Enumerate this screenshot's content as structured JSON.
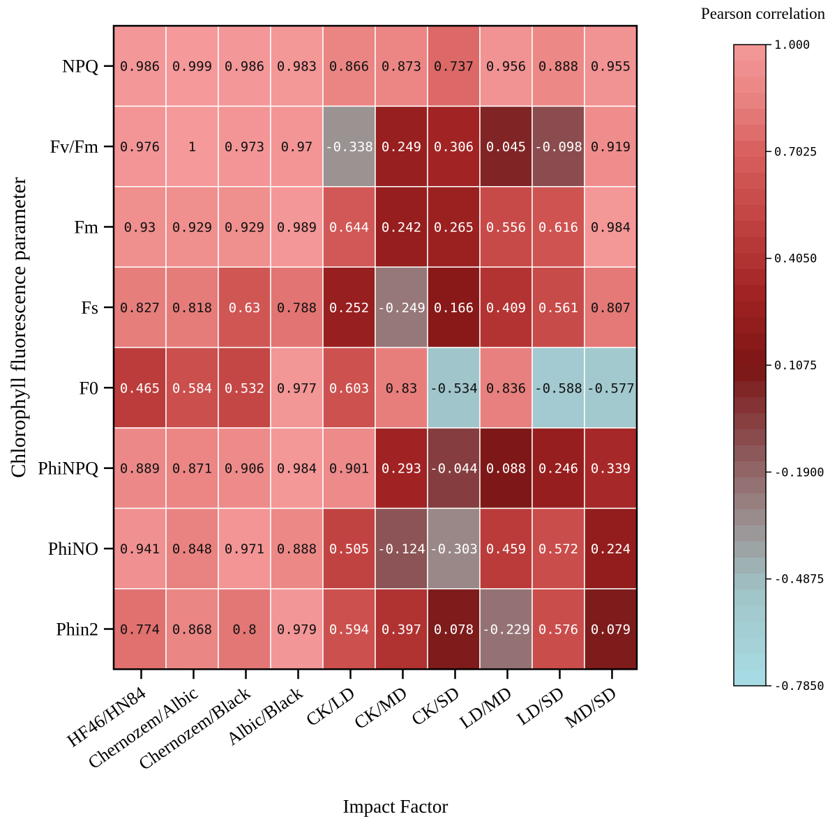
{
  "chart_data": {
    "type": "heatmap",
    "title": "",
    "xlabel": "Impact Factor",
    "ylabel": "Chlorophyll fluorescence parameter",
    "x_categories": [
      "HF46/HN84",
      "Chernozem/Albic",
      "Chernozem/Black",
      "Albic/Black",
      "CK/LD",
      "CK/MD",
      "CK/SD",
      "LD/MD",
      "LD/SD",
      "MD/SD"
    ],
    "y_categories": [
      "NPQ",
      "Fv/Fm",
      "Fm",
      "Fs",
      "F0",
      "PhiNPQ",
      "PhiNO",
      "Phin2"
    ],
    "values": [
      [
        0.986,
        0.999,
        0.986,
        0.983,
        0.866,
        0.873,
        0.737,
        0.956,
        0.888,
        0.955
      ],
      [
        0.976,
        1,
        0.973,
        0.97,
        -0.338,
        0.249,
        0.306,
        0.045,
        -0.098,
        0.919
      ],
      [
        0.93,
        0.929,
        0.929,
        0.989,
        0.644,
        0.242,
        0.265,
        0.556,
        0.616,
        0.984
      ],
      [
        0.827,
        0.818,
        0.63,
        0.788,
        0.252,
        -0.249,
        0.166,
        0.409,
        0.561,
        0.807
      ],
      [
        0.465,
        0.584,
        0.532,
        0.977,
        0.603,
        0.83,
        -0.534,
        0.836,
        -0.588,
        -0.577
      ],
      [
        0.889,
        0.871,
        0.906,
        0.984,
        0.901,
        0.293,
        -0.044,
        0.088,
        0.246,
        0.339
      ],
      [
        0.941,
        0.848,
        0.971,
        0.888,
        0.505,
        -0.124,
        -0.303,
        0.459,
        0.572,
        0.224
      ],
      [
        0.774,
        0.868,
        0.8,
        0.979,
        0.594,
        0.397,
        0.078,
        -0.229,
        0.576,
        0.079
      ]
    ],
    "value_labels": [
      [
        "0.986",
        "0.999",
        "0.986",
        "0.983",
        "0.866",
        "0.873",
        "0.737",
        "0.956",
        "0.888",
        "0.955"
      ],
      [
        "0.976",
        "1",
        "0.973",
        "0.97",
        "-0.338",
        "0.249",
        "0.306",
        "0.045",
        "-0.098",
        "0.919"
      ],
      [
        "0.93",
        "0.929",
        "0.929",
        "0.989",
        "0.644",
        "0.242",
        "0.265",
        "0.556",
        "0.616",
        "0.984"
      ],
      [
        "0.827",
        "0.818",
        "0.63",
        "0.788",
        "0.252",
        "-0.249",
        "0.166",
        "0.409",
        "0.561",
        "0.807"
      ],
      [
        "0.465",
        "0.584",
        "0.532",
        "0.977",
        "0.603",
        "0.83",
        "-0.534",
        "0.836",
        "-0.588",
        "-0.577"
      ],
      [
        "0.889",
        "0.871",
        "0.906",
        "0.984",
        "0.901",
        "0.293",
        "-0.044",
        "0.088",
        "0.246",
        "0.339"
      ],
      [
        "0.941",
        "0.848",
        "0.971",
        "0.888",
        "0.505",
        "-0.124",
        "-0.303",
        "0.459",
        "0.572",
        "0.224"
      ],
      [
        "0.774",
        "0.868",
        "0.8",
        "0.979",
        "0.594",
        "0.397",
        "0.078",
        "-0.229",
        "0.576",
        "0.079"
      ]
    ],
    "colorbar": {
      "title": "Pearson correlation",
      "range": [
        -0.785,
        1.0
      ],
      "ticks": [
        1.0,
        0.7025,
        0.405,
        0.1075,
        -0.19,
        -0.4875,
        -0.785
      ],
      "tick_labels": [
        "1.000",
        "0.7025",
        "0.4050",
        "0.1075",
        "-0.1900",
        "-0.4875",
        "-0.7850"
      ],
      "color_stops": [
        {
          "v": -0.785,
          "color": "#a8dde6"
        },
        {
          "v": -0.52,
          "color": "#a0c4c8"
        },
        {
          "v": -0.3,
          "color": "#9a8787"
        },
        {
          "v": -0.1,
          "color": "#8a4d4f"
        },
        {
          "v": 0.1,
          "color": "#7d1515"
        },
        {
          "v": 0.3,
          "color": "#a12222"
        },
        {
          "v": 0.5,
          "color": "#c04240"
        },
        {
          "v": 0.7,
          "color": "#d8605e"
        },
        {
          "v": 0.85,
          "color": "#e98381"
        },
        {
          "v": 1.0,
          "color": "#f5999a"
        }
      ],
      "legend_position": "right"
    }
  }
}
